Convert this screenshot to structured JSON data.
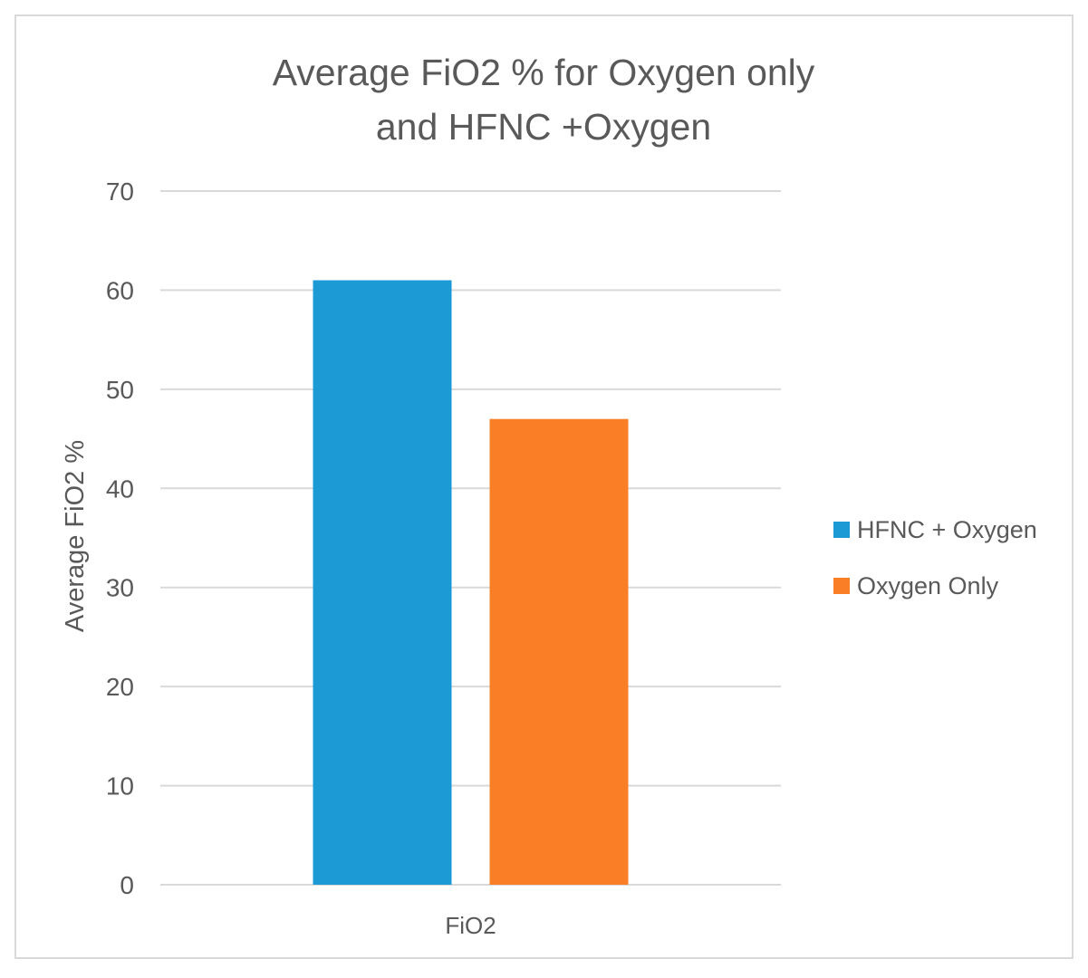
{
  "chart_data": {
    "type": "bar",
    "title": [
      "Average FiO2 % for Oxygen only",
      "and HFNC  +Oxygen"
    ],
    "xlabel": "",
    "ylabel": "Average FiO2 %",
    "categories": [
      "FiO2"
    ],
    "series": [
      {
        "name": "HFNC + Oxygen",
        "values": [
          61
        ],
        "color": "#1b9ad6"
      },
      {
        "name": "Oxygen Only",
        "values": [
          47
        ],
        "color": "#f97e26"
      }
    ],
    "ylim": [
      0,
      70
    ],
    "yticks": [
      0,
      10,
      20,
      30,
      40,
      50,
      60,
      70
    ],
    "grid": true,
    "gridline_color": "#d9d9d9",
    "legend_position": "right"
  }
}
